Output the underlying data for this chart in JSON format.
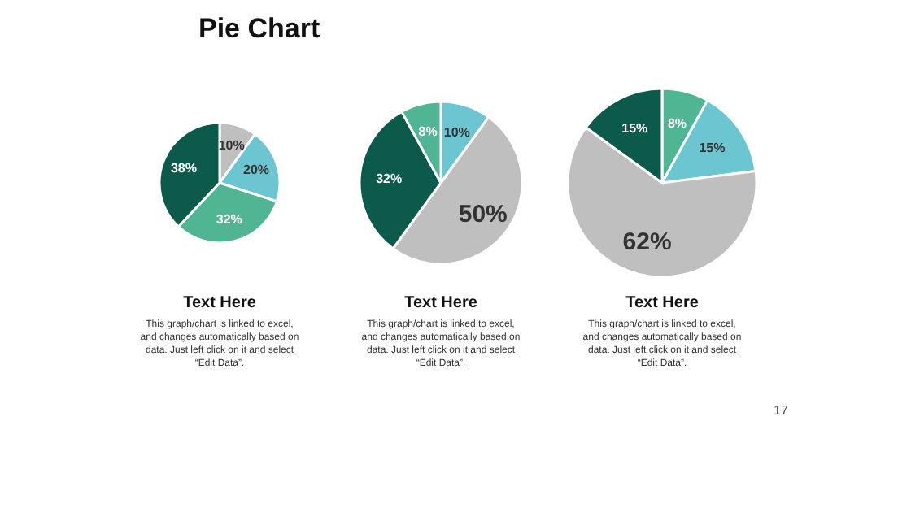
{
  "chart_data": [
    {
      "type": "other",
      "title": "Pie Chart",
      "annotations": [
        "17"
      ]
    },
    {
      "type": "pie",
      "title": "Text Here",
      "categories": [
        null,
        null,
        null,
        null
      ],
      "values": [
        10,
        20,
        32,
        38
      ],
      "colors": [
        "#bfbfbf",
        "#6cc6d1",
        "#4fb592",
        "#0b5a4b"
      ],
      "value_labels": [
        "10%",
        "20%",
        "32%",
        "38%"
      ],
      "annotations": [
        "This graph/chart is linked to excel, and changes automatically based on data. Just left click on it and select “Edit Data”."
      ]
    },
    {
      "type": "pie",
      "title": "Text Here",
      "categories": [
        null,
        null,
        null,
        null
      ],
      "values": [
        10,
        50,
        32,
        8
      ],
      "colors": [
        "#6cc6d1",
        "#bfbfbf",
        "#0b5a4b",
        "#4fb592"
      ],
      "value_labels": [
        "10%",
        "50%",
        "32%",
        "8%"
      ],
      "annotations": [
        "This graph/chart is linked to excel, and changes automatically based on data. Just left click on it and select “Edit Data”."
      ]
    },
    {
      "type": "pie",
      "title": "Text Here",
      "categories": [
        null,
        null,
        null,
        null
      ],
      "values": [
        8,
        15,
        62,
        15
      ],
      "colors": [
        "#4fb592",
        "#6cc6d1",
        "#bfbfbf",
        "#0b5a4b"
      ],
      "value_labels": [
        "8%",
        "15%",
        "62%",
        "15%"
      ],
      "annotations": [
        "This graph/chart is linked to excel, and changes automatically based on data. Just left click on it and select “Edit Data”."
      ]
    }
  ]
}
